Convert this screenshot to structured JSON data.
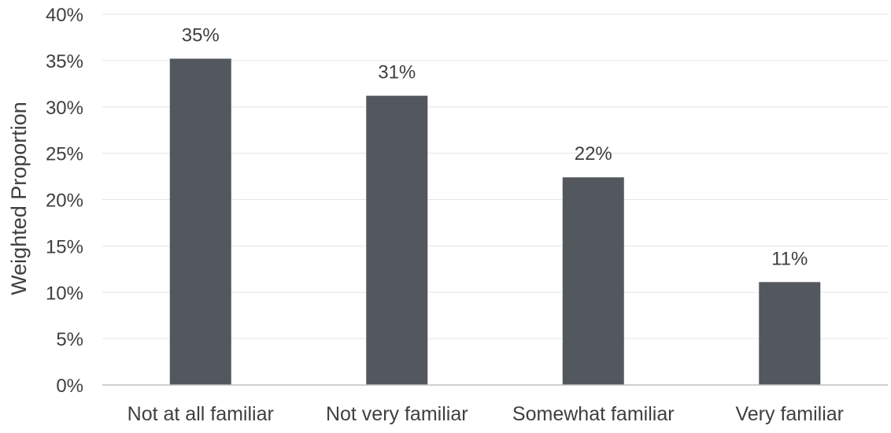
{
  "chart_data": {
    "type": "bar",
    "title": "",
    "xlabel": "",
    "ylabel": "Weighted Proportion",
    "categories": [
      "Not at all familiar",
      "Not very familiar",
      "Somewhat familiar",
      "Very familiar"
    ],
    "values": [
      35.2,
      31.2,
      22.4,
      11.1
    ],
    "data_labels": [
      "35%",
      "31%",
      "22%",
      "11%"
    ],
    "ylim": [
      0,
      40
    ],
    "y_ticks": [
      0,
      5,
      10,
      15,
      20,
      25,
      30,
      35,
      40
    ],
    "y_tick_labels": [
      "0%",
      "5%",
      "10%",
      "15%",
      "20%",
      "25%",
      "30%",
      "35%",
      "40%"
    ],
    "grid": true,
    "legend": "none",
    "colors": {
      "bar": "#53575e",
      "grid": "#e6e6e6",
      "axis": "#bfbfbf",
      "text": "#3f3f3f"
    }
  }
}
